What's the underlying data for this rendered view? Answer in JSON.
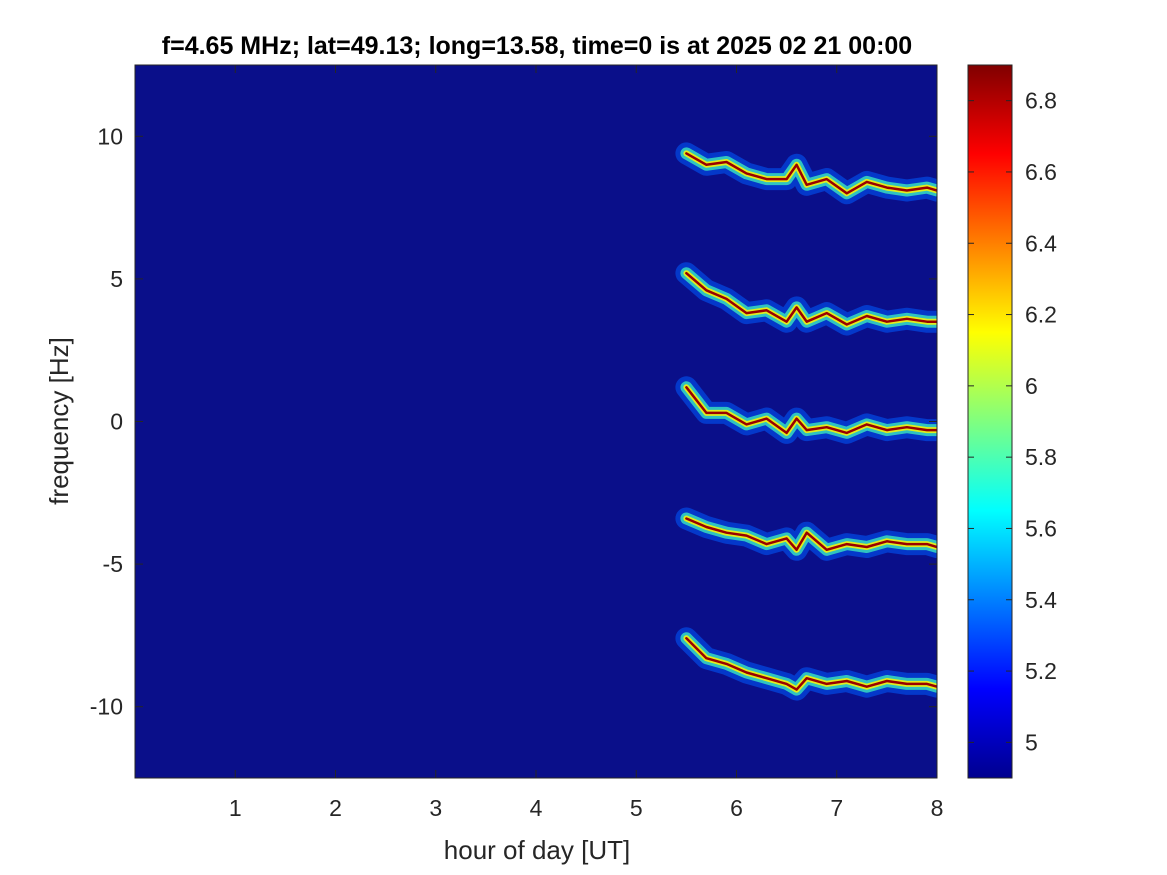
{
  "chart_data": {
    "type": "heatmap",
    "title": "f=4.65 MHz;  lat=49.13; long=13.58, time=0 is at 2025 02 21 00:00",
    "xlabel": "hour of day [UT]",
    "ylabel": "frequency [Hz]",
    "xlim": [
      0,
      8
    ],
    "ylim": [
      -12.5,
      12.5
    ],
    "x_ticks": [
      "1",
      "2",
      "3",
      "4",
      "5",
      "6",
      "7",
      "8"
    ],
    "y_ticks": [
      "-10",
      "-5",
      "0",
      "5",
      "10"
    ],
    "colorbar": {
      "lim": [
        4.9,
        6.9
      ],
      "ticks": [
        "5",
        "5.2",
        "5.4",
        "5.6",
        "5.8",
        "6",
        "6.2",
        "6.4",
        "6.6",
        "6.8"
      ],
      "colormap": "jet"
    },
    "background_value": 4.95,
    "background_color": "#0a0f8a",
    "traces": [
      {
        "name": "",
        "peak": 6.85,
        "x": [
          5.5,
          5.7,
          5.9,
          6.1,
          6.3,
          6.5,
          6.6,
          6.7,
          6.9,
          7.1,
          7.3,
          7.5,
          7.7,
          7.9,
          8.0
        ],
        "y": [
          9.4,
          9.0,
          9.1,
          8.7,
          8.5,
          8.5,
          9.0,
          8.3,
          8.5,
          8.0,
          8.4,
          8.2,
          8.1,
          8.2,
          8.1
        ]
      },
      {
        "name": "",
        "peak": 6.85,
        "x": [
          5.5,
          5.7,
          5.9,
          6.1,
          6.3,
          6.5,
          6.6,
          6.7,
          6.9,
          7.1,
          7.3,
          7.5,
          7.7,
          7.9,
          8.0
        ],
        "y": [
          5.2,
          4.6,
          4.3,
          3.8,
          3.9,
          3.5,
          4.0,
          3.5,
          3.8,
          3.4,
          3.7,
          3.5,
          3.6,
          3.5,
          3.5
        ]
      },
      {
        "name": "",
        "peak": 6.85,
        "x": [
          5.5,
          5.7,
          5.9,
          6.1,
          6.3,
          6.5,
          6.6,
          6.7,
          6.9,
          7.1,
          7.3,
          7.5,
          7.7,
          7.9,
          8.0
        ],
        "y": [
          1.2,
          0.3,
          0.3,
          -0.1,
          0.1,
          -0.4,
          0.1,
          -0.3,
          -0.2,
          -0.4,
          -0.1,
          -0.3,
          -0.2,
          -0.3,
          -0.3
        ]
      },
      {
        "name": "",
        "peak": 6.85,
        "x": [
          5.5,
          5.7,
          5.9,
          6.1,
          6.3,
          6.5,
          6.6,
          6.7,
          6.9,
          7.1,
          7.3,
          7.5,
          7.7,
          7.9,
          8.0
        ],
        "y": [
          -3.4,
          -3.7,
          -3.9,
          -4.0,
          -4.3,
          -4.1,
          -4.5,
          -3.9,
          -4.5,
          -4.3,
          -4.4,
          -4.2,
          -4.3,
          -4.3,
          -4.4
        ]
      },
      {
        "name": "",
        "peak": 6.85,
        "x": [
          5.5,
          5.7,
          5.9,
          6.1,
          6.3,
          6.5,
          6.6,
          6.7,
          6.9,
          7.1,
          7.3,
          7.5,
          7.7,
          7.9,
          8.0
        ],
        "y": [
          -7.6,
          -8.3,
          -8.5,
          -8.8,
          -9.0,
          -9.2,
          -9.4,
          -9.0,
          -9.2,
          -9.1,
          -9.3,
          -9.1,
          -9.2,
          -9.2,
          -9.3
        ]
      }
    ]
  }
}
